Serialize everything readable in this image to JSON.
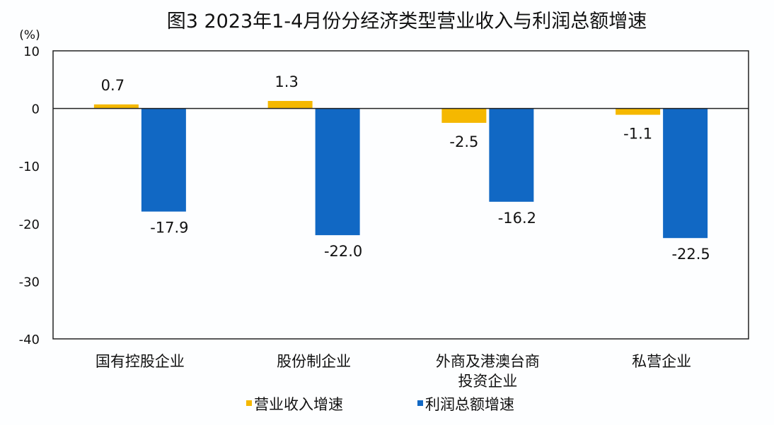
{
  "chart_data": {
    "type": "bar",
    "title": "图3  2023年1-4月份分经济类型营业收入与利润总额增速",
    "ylabel": "(%)",
    "xlabel": "",
    "ylim": [
      -40,
      10
    ],
    "yticks": [
      "10",
      "0",
      "-10",
      "-20",
      "-30",
      "-40"
    ],
    "categories": [
      [
        "国有控股企业"
      ],
      [
        "股份制企业"
      ],
      [
        "外商及港澳台商",
        "投资企业"
      ],
      [
        "私营企业"
      ]
    ],
    "series": [
      {
        "name": "营业收入增速",
        "color": "#f5b800",
        "values": [
          0.7,
          1.3,
          -2.5,
          -1.1
        ],
        "labels": [
          "0.7",
          "1.3",
          "-2.5",
          "-1.1"
        ]
      },
      {
        "name": "利润总额增速",
        "color": "#1168c4",
        "values": [
          -17.9,
          -22.0,
          -16.2,
          -22.5
        ],
        "labels": [
          "-17.9",
          "-22.0",
          "-16.2",
          "-22.5"
        ]
      }
    ],
    "grid": false,
    "legend": "bottom"
  }
}
